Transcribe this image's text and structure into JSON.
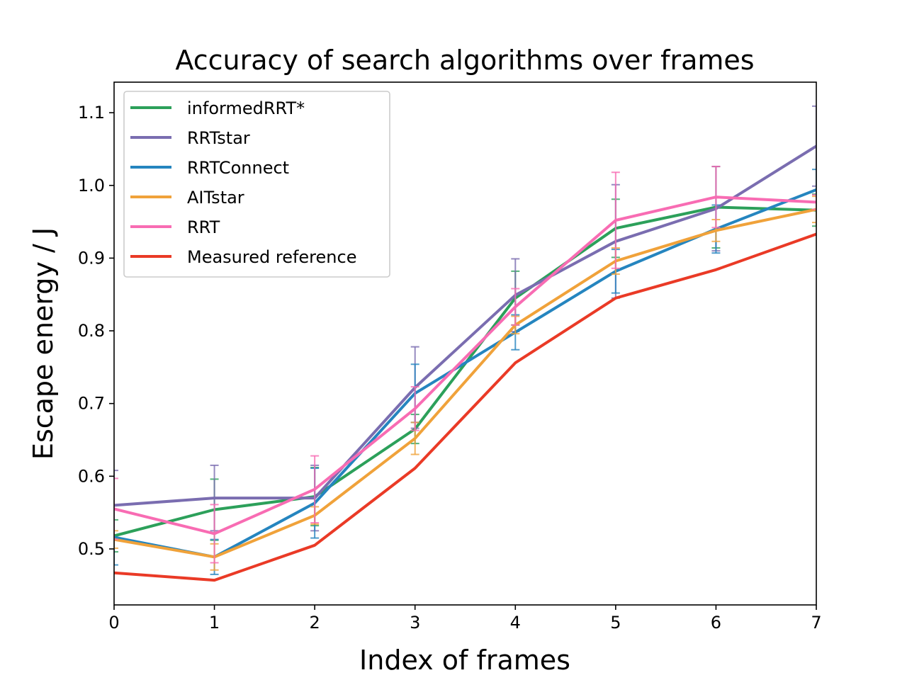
{
  "chart_data": {
    "type": "line",
    "title": "Accuracy of search algorithms over frames",
    "xlabel": "Index of frames",
    "ylabel": "Escape energy / J",
    "x": [
      0,
      1,
      2,
      3,
      4,
      5,
      6,
      7
    ],
    "xlim": [
      0,
      7
    ],
    "ylim": [
      0.423,
      1.142
    ],
    "xticks": [
      "0",
      "1",
      "2",
      "3",
      "4",
      "5",
      "6",
      "7"
    ],
    "yticks": [
      0.5,
      0.6,
      0.7,
      0.8,
      0.9,
      1.0,
      1.1
    ],
    "ytick_labels": [
      "0.5",
      "0.6",
      "0.7",
      "0.8",
      "0.9",
      "1.0",
      "1.1"
    ],
    "grid": false,
    "legend_position": "top-left",
    "series": [
      {
        "name": "informedRRT*",
        "color": "#2ca05a",
        "values": [
          0.518,
          0.554,
          0.572,
          0.665,
          0.845,
          0.941,
          0.97,
          0.966
        ],
        "errors": [
          0.022,
          0.042,
          0.04,
          0.02,
          0.037,
          0.04,
          0.056,
          0.022
        ]
      },
      {
        "name": "RRTstar",
        "color": "#7a6db0",
        "values": [
          0.56,
          0.57,
          0.57,
          0.722,
          0.849,
          0.923,
          0.968,
          1.054
        ],
        "errors": [
          0.048,
          0.045,
          0.045,
          0.056,
          0.05,
          0.078,
          0.058,
          0.055
        ]
      },
      {
        "name": "RRTConnect",
        "color": "#2585bf",
        "values": [
          0.516,
          0.489,
          0.563,
          0.714,
          0.798,
          0.882,
          0.94,
          0.994
        ],
        "errors": [
          0.038,
          0.024,
          0.048,
          0.04,
          0.024,
          0.03,
          0.033,
          0.028
        ]
      },
      {
        "name": "AITstar",
        "color": "#f0a23a",
        "values": [
          0.513,
          0.489,
          0.546,
          0.652,
          0.808,
          0.896,
          0.938,
          0.967
        ],
        "errors": [
          0.012,
          0.018,
          0.012,
          0.022,
          0.012,
          0.018,
          0.015,
          0.018
        ]
      },
      {
        "name": "RRT",
        "color": "#f86cb3",
        "values": [
          0.555,
          0.521,
          0.582,
          0.693,
          0.833,
          0.952,
          0.984,
          0.977
        ],
        "errors": [
          0.042,
          0.04,
          0.046,
          0.03,
          0.025,
          0.066,
          0.042,
          0.01
        ]
      },
      {
        "name": "Measured reference",
        "color": "#ea3a26",
        "values": [
          0.467,
          0.457,
          0.505,
          0.611,
          0.756,
          0.845,
          0.884,
          0.933
        ]
      }
    ]
  }
}
